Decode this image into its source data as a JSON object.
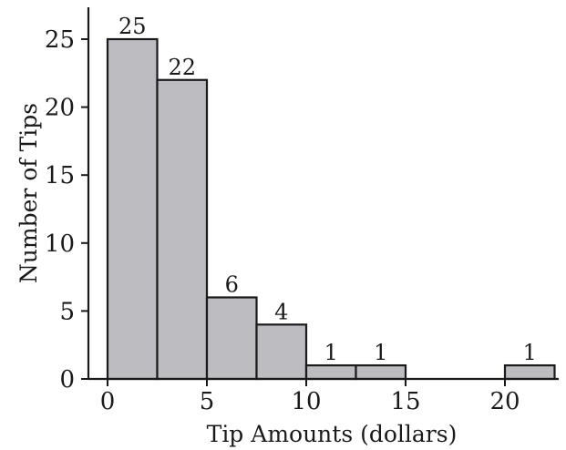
{
  "chart_data": {
    "type": "bar",
    "title": "",
    "xlabel": "Tip Amounts (dollars)",
    "ylabel": "Number of Tips",
    "xlim": [
      0,
      22.5
    ],
    "ylim": [
      0,
      25
    ],
    "x_ticks": [
      0,
      5,
      10,
      15,
      20
    ],
    "y_ticks": [
      0,
      5,
      10,
      15,
      20,
      25
    ],
    "bins": [
      {
        "start": 0,
        "end": 2.5,
        "value": 25
      },
      {
        "start": 2.5,
        "end": 5,
        "value": 22
      },
      {
        "start": 5,
        "end": 7.5,
        "value": 6
      },
      {
        "start": 7.5,
        "end": 10,
        "value": 4
      },
      {
        "start": 10,
        "end": 12.5,
        "value": 1
      },
      {
        "start": 12.5,
        "end": 15,
        "value": 1
      },
      {
        "start": 15,
        "end": 17.5,
        "value": 0
      },
      {
        "start": 17.5,
        "end": 20,
        "value": 0
      },
      {
        "start": 20,
        "end": 22.5,
        "value": 1
      }
    ],
    "bar_color": "#bdbdc1",
    "grid": false
  }
}
